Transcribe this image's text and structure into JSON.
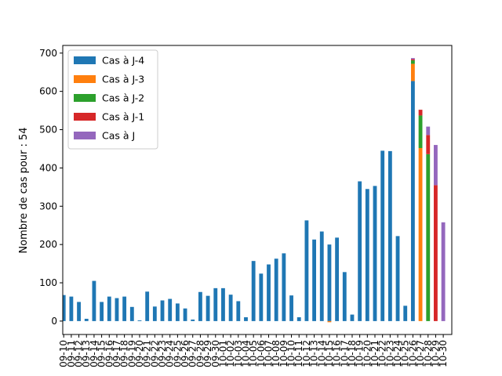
{
  "chart_data": {
    "type": "bar",
    "stacked": true,
    "title": "",
    "xlabel": "",
    "ylabel": "Nombre de cas pour : 54",
    "ylim": [
      -35,
      720
    ],
    "yticks": [
      0,
      100,
      200,
      300,
      400,
      500,
      600,
      700
    ],
    "grid": false,
    "legend_position": "top-left",
    "categories": [
      "09-10",
      "09-11",
      "09-12",
      "09-13",
      "09-14",
      "09-15",
      "09-16",
      "09-17",
      "09-18",
      "09-19",
      "09-20",
      "09-21",
      "09-22",
      "09-23",
      "09-24",
      "09-25",
      "09-26",
      "09-27",
      "09-28",
      "09-29",
      "09-30",
      "10-01",
      "10-02",
      "10-03",
      "10-04",
      "10-05",
      "10-06",
      "10-07",
      "10-08",
      "10-09",
      "10-10",
      "10-11",
      "10-12",
      "10-13",
      "10-14",
      "10-15",
      "10-16",
      "10-17",
      "10-18",
      "10-19",
      "10-20",
      "10-21",
      "10-22",
      "10-23",
      "10-24",
      "10-25",
      "10-26",
      "10-27",
      "10-28",
      "10-29",
      "10-30"
    ],
    "series": [
      {
        "name": "Cas à J-4",
        "color": "#1f77b4",
        "values": [
          68,
          64,
          50,
          6,
          105,
          50,
          64,
          60,
          64,
          37,
          2,
          77,
          38,
          54,
          58,
          46,
          33,
          4,
          76,
          66,
          86,
          86,
          69,
          52,
          10,
          157,
          124,
          148,
          163,
          177,
          67,
          10,
          263,
          213,
          234,
          200,
          218,
          128,
          17,
          365,
          345,
          353,
          445,
          444,
          222,
          40,
          627,
          0,
          0,
          0,
          0
        ]
      },
      {
        "name": "Cas à J-3",
        "color": "#ff7f0e",
        "values": [
          0,
          0,
          0,
          0,
          0,
          0,
          0,
          0,
          0,
          0,
          0,
          0,
          0,
          0,
          0,
          0,
          0,
          0,
          0,
          0,
          0,
          0,
          0,
          0,
          0,
          0,
          0,
          0,
          0,
          0,
          0,
          0,
          0,
          0,
          0,
          -3,
          0,
          0,
          0,
          0,
          0,
          0,
          0,
          0,
          0,
          0,
          45,
          452,
          0,
          0,
          0
        ]
      },
      {
        "name": "Cas à J-2",
        "color": "#2ca02c",
        "values": [
          0,
          0,
          0,
          0,
          0,
          0,
          0,
          0,
          0,
          0,
          0,
          0,
          0,
          0,
          0,
          0,
          0,
          0,
          0,
          0,
          0,
          0,
          0,
          0,
          0,
          0,
          0,
          0,
          0,
          0,
          0,
          0,
          0,
          0,
          0,
          0,
          0,
          0,
          0,
          0,
          0,
          0,
          0,
          0,
          0,
          0,
          9,
          85,
          436,
          0,
          0
        ]
      },
      {
        "name": "Cas à J-1",
        "color": "#d62728",
        "values": [
          0,
          0,
          0,
          0,
          0,
          0,
          0,
          0,
          0,
          0,
          0,
          0,
          0,
          0,
          0,
          0,
          0,
          0,
          0,
          0,
          0,
          0,
          0,
          0,
          0,
          0,
          0,
          0,
          0,
          0,
          0,
          0,
          0,
          0,
          0,
          0,
          0,
          0,
          0,
          0,
          0,
          0,
          0,
          0,
          0,
          0,
          3,
          15,
          50,
          355,
          0
        ]
      },
      {
        "name": "Cas à J",
        "color": "#9467bd",
        "values": [
          0,
          0,
          0,
          0,
          0,
          0,
          0,
          0,
          0,
          0,
          0,
          0,
          0,
          0,
          0,
          0,
          0,
          0,
          0,
          0,
          0,
          0,
          0,
          0,
          0,
          0,
          0,
          0,
          0,
          0,
          0,
          0,
          0,
          0,
          0,
          0,
          0,
          0,
          0,
          0,
          0,
          0,
          0,
          0,
          0,
          0,
          3,
          0,
          22,
          105,
          258
        ]
      }
    ]
  }
}
